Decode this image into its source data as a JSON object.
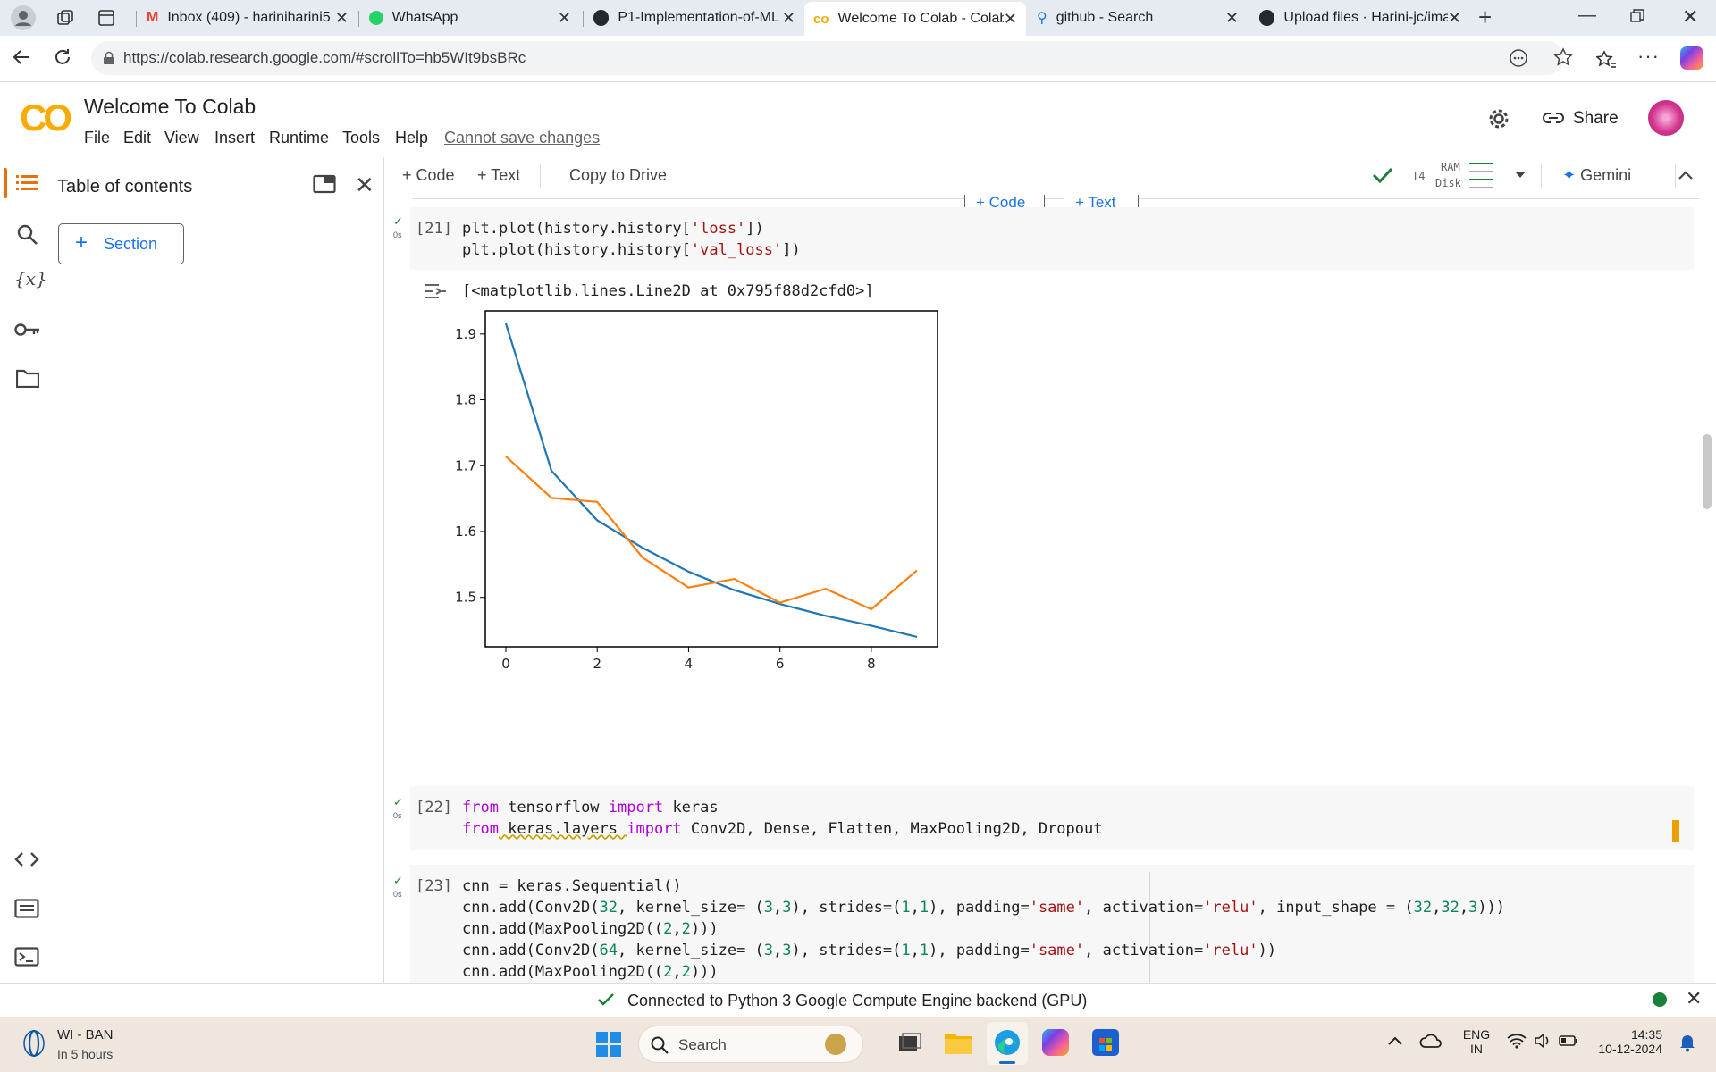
{
  "browser": {
    "tabs": [
      {
        "title": "Inbox (409) - hariniharini5",
        "icon": "gmail-icon"
      },
      {
        "title": "WhatsApp",
        "icon": "whatsapp-icon"
      },
      {
        "title": "P1-Implementation-of-ML",
        "icon": "github-icon"
      },
      {
        "title": "Welcome To Colab - Colab",
        "icon": "colab-icon",
        "active": true
      },
      {
        "title": "github - Search",
        "icon": "search-icon"
      },
      {
        "title": "Upload files · Harini-jc/ima",
        "icon": "github-icon"
      }
    ],
    "url": "https://colab.research.google.com/#scrollTo=hb5WIt9bsBRc"
  },
  "colab": {
    "logo": "CO",
    "title": "Welcome To Colab",
    "menu": [
      "File",
      "Edit",
      "View",
      "Insert",
      "Runtime",
      "Tools",
      "Help"
    ],
    "cannot_save": "Cannot save changes",
    "share": "Share"
  },
  "toolbar": {
    "code": "Code",
    "text": "Text",
    "copy_to_drive": "Copy to Drive",
    "runtime_type": "T4",
    "ram": "RAM",
    "disk": "Disk",
    "gemini": "Gemini"
  },
  "sidebar": {
    "title": "Table of contents",
    "section_button": "Section"
  },
  "insert_bar": {
    "code": "Code",
    "text": "Text"
  },
  "cells": {
    "c21": {
      "exec": "[21]",
      "runtime": "0s",
      "lines": [
        "plt.plot(history.history[",
        "'loss'",
        "])",
        "plt.plot(history.history[",
        "'val_loss'",
        "])"
      ],
      "output_text": "[<matplotlib.lines.Line2D at 0x795f88d2cfd0>]"
    },
    "c22": {
      "exec": "[22]",
      "runtime": "0s",
      "from1": "from",
      "mod1": " tensorflow ",
      "imp1": "import",
      "rest1": " keras",
      "from2": "from",
      "mod2": " keras.layers ",
      "imp2": "import",
      "rest2": " Conv2D, Dense, Flatten, MaxPooling2D, Dropout"
    },
    "c23": {
      "exec": "[23]",
      "runtime": "0s",
      "l1": "cnn = keras.Sequential()",
      "l2a": "cnn.add(Conv2D(",
      "l2n1": "32",
      "l2b": ", kernel_size= (",
      "l2n2": "3",
      "l2c": ",",
      "l2n3": "3",
      "l2d": "), strides=(",
      "l2n4": "1",
      "l2e": ",",
      "l2n5": "1",
      "l2f": "), padding=",
      "l2s1": "'same'",
      "l2g": ", activation=",
      "l2s2": "'relu'",
      "l2h": ", input_shape = (",
      "l2n6": "32",
      "l2i": ",",
      "l2n7": "32",
      "l2j": ",",
      "l2n8": "3",
      "l2k": ")))",
      "l3a": "cnn.add(MaxPooling2D((",
      "l3n1": "2",
      "l3b": ",",
      "l3n2": "2",
      "l3c": ")))",
      "l4a": "cnn.add(Conv2D(",
      "l4n1": "64",
      "l4b": ", kernel_size= (",
      "l4n2": "3",
      "l4c": ",",
      "l4n3": "3",
      "l4d": "), strides=(",
      "l4n4": "1",
      "l4e": ",",
      "l4n5": "1",
      "l4f": "), padding=",
      "l4s1": "'same'",
      "l4g": ", activation=",
      "l4s2": "'relu'",
      "l4h": "))",
      "l5a": "cnn.add(MaxPooling2D((",
      "l5n1": "2",
      "l5b": ",",
      "l5n2": "2",
      "l5c": ")))"
    }
  },
  "chart_data": {
    "type": "line",
    "title": "",
    "xlabel": "",
    "ylabel": "",
    "x": [
      0,
      1,
      2,
      3,
      4,
      5,
      6,
      7,
      8,
      9
    ],
    "xticks": [
      "0",
      "2",
      "4",
      "6",
      "8"
    ],
    "yticks": [
      "1.5",
      "1.6",
      "1.7",
      "1.8",
      "1.9"
    ],
    "xlim": [
      -0.45,
      9.45
    ],
    "ylim": [
      1.425,
      1.935
    ],
    "series": [
      {
        "color": "#1f77b4",
        "values": [
          1.916,
          1.692,
          1.617,
          1.575,
          1.539,
          1.511,
          1.49,
          1.472,
          1.457,
          1.44
        ]
      },
      {
        "color": "#ff7f0e",
        "values": [
          1.714,
          1.651,
          1.645,
          1.56,
          1.515,
          1.528,
          1.492,
          1.513,
          1.482,
          1.541
        ]
      }
    ]
  },
  "status": {
    "text": "Connected to Python 3 Google Compute Engine backend (GPU)"
  },
  "taskbar": {
    "weather_title": "WI - BAN",
    "weather_sub": "In 5 hours",
    "search": "Search",
    "lang1": "ENG",
    "lang2": "IN",
    "time": "14:35",
    "date": "10-12-2024"
  }
}
